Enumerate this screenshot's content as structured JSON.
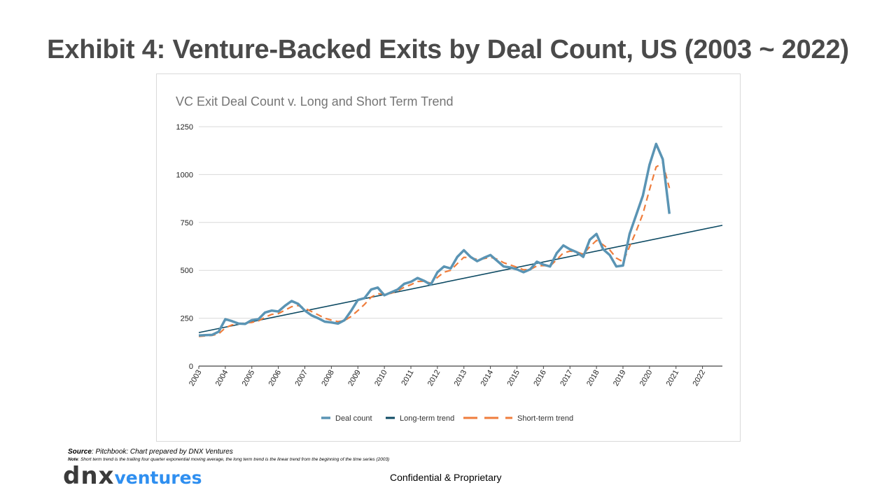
{
  "slide": {
    "title": "Exhibit 4: Venture-Backed Exits by Deal Count, US (2003 ~ 2022)",
    "source_label": "Source",
    "source_text": ": Pitchbook: Chart prepared by DNX Ventures",
    "note_label": "Note",
    "note_text": ": Short term trend is the trailing four quarter exponential moving average, the long term trend is the linear trend from the beginning of the time series (2003)",
    "confidential": "Confidential & Proprietary",
    "logo_dnx": "dnx",
    "logo_ventures": "ventures"
  },
  "colors": {
    "deal": "#5a94b4",
    "long": "#0d4a63",
    "short": "#ef7d3c",
    "grid": "#d9d9d9",
    "axis": "#444444",
    "title": "#757575"
  },
  "chart_data": {
    "type": "line",
    "title": "VC Exit Deal Count v. Long and Short Term Trend",
    "xlabel": "",
    "ylabel": "",
    "ylim": [
      0,
      1250
    ],
    "yticks": [
      0,
      250,
      500,
      750,
      1000,
      1250
    ],
    "x_ticks": [
      "2003",
      "2004",
      "2005",
      "2006",
      "2007",
      "2008",
      "2009",
      "2010",
      "2011",
      "2012",
      "2013",
      "2014",
      "2015",
      "2016",
      "2017",
      "2018",
      "2019",
      "2020",
      "2021",
      "2022"
    ],
    "x_start": 2003,
    "x_end": 2022.75,
    "grid": true,
    "legend_position": "bottom",
    "series": [
      {
        "name": "Deal count",
        "style": "solid",
        "values": [
          160,
          162,
          163,
          180,
          245,
          235,
          222,
          220,
          240,
          245,
          280,
          290,
          285,
          315,
          340,
          325,
          290,
          265,
          250,
          232,
          228,
          222,
          240,
          290,
          345,
          355,
          400,
          410,
          370,
          385,
          400,
          430,
          440,
          460,
          445,
          425,
          490,
          520,
          510,
          570,
          605,
          570,
          548,
          565,
          580,
          550,
          520,
          515,
          505,
          490,
          505,
          545,
          530,
          520,
          590,
          630,
          610,
          595,
          570,
          660,
          690,
          610,
          580,
          520,
          525,
          690,
          790,
          890,
          1050,
          1160,
          1080,
          795
        ]
      },
      {
        "name": "Long-term trend",
        "style": "solid",
        "start": 175,
        "end": 735
      },
      {
        "name": "Short-term trend",
        "style": "dashed",
        "values": [
          155,
          158,
          160,
          168,
          200,
          215,
          220,
          225,
          228,
          236,
          255,
          270,
          274,
          292,
          310,
          316,
          302,
          285,
          268,
          250,
          240,
          232,
          238,
          260,
          290,
          322,
          360,
          378,
          375,
          380,
          392,
          412,
          425,
          442,
          443,
          433,
          463,
          490,
          500,
          535,
          568,
          566,
          557,
          561,
          568,
          559,
          540,
          528,
          516,
          503,
          504,
          523,
          525,
          522,
          556,
          591,
          600,
          597,
          584,
          623,
          656,
          633,
          607,
          564,
          545,
          624,
          705,
          795,
          920,
          1040,
          1060,
          930
        ]
      }
    ]
  }
}
